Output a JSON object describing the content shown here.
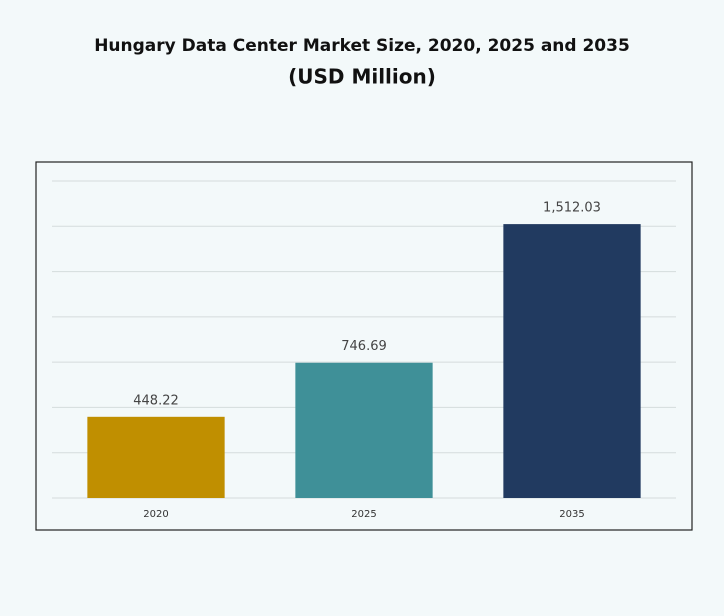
{
  "chart_data": {
    "type": "bar",
    "title": "Hungary Data Center Market Size, 2020, 2025 and 2035",
    "subtitle": "(USD Million)",
    "categories": [
      "2020",
      "2025",
      "2035"
    ],
    "series": [
      {
        "name": "Market Size",
        "colors": [
          "#c08f00",
          "#3f9098",
          "#213a60"
        ],
        "values": [
          448.22,
          746.69,
          1512.03
        ],
        "value_labels": [
          "448.22",
          "746.69",
          "1,512.03"
        ]
      }
    ],
    "ylim": [
      0,
      1750
    ],
    "yticks": [
      0,
      250,
      500,
      750,
      1000,
      1250,
      1500,
      1750
    ],
    "grid": true
  }
}
